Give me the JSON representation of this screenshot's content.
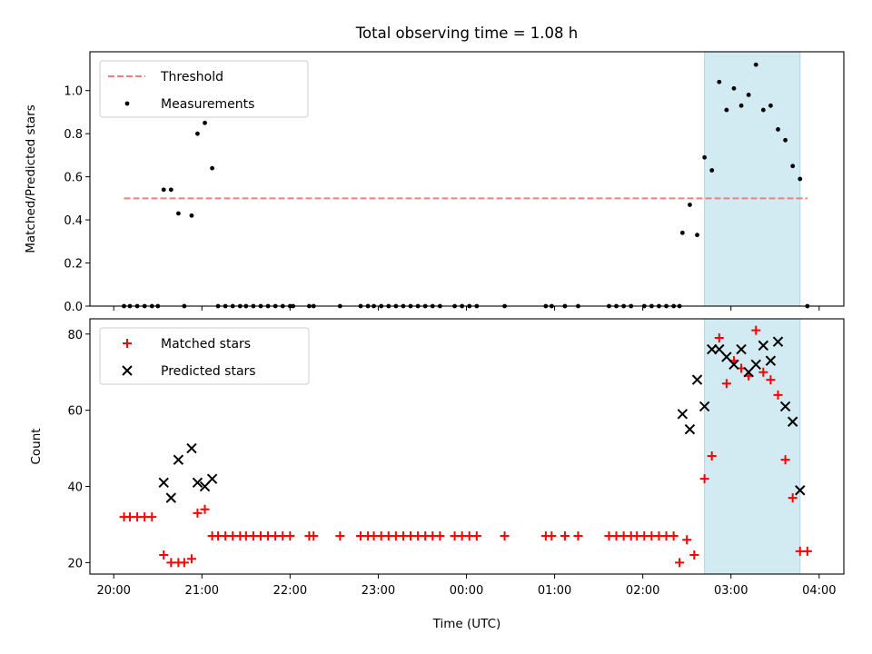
{
  "title": "Total observing time = 1.08 h",
  "chart_data": [
    {
      "type": "scatter",
      "ylabel": "Matched/Predicted stars",
      "ylim": [
        0,
        1.18
      ],
      "xlim_hours": [
        19.73,
        28.28
      ],
      "yticks": [
        0.0,
        0.2,
        0.4,
        0.6,
        0.8,
        1.0
      ],
      "ytick_labels": [
        "0.0",
        "0.2",
        "0.4",
        "0.6",
        "0.8",
        "1.0"
      ],
      "highlight_span": {
        "from": "02:42",
        "to": "03:47",
        "color": "#add8e6"
      },
      "threshold": {
        "name": "Threshold",
        "y": 0.5,
        "x_from": "20:07",
        "x_to": "03:52",
        "color": "#f08080"
      },
      "legend": [
        "Threshold",
        "Measurements"
      ],
      "legend_position": "upper left",
      "series": [
        {
          "name": "Measurements",
          "color": "#000000",
          "points": [
            [
              "20:07",
              0
            ],
            [
              "20:11",
              0
            ],
            [
              "20:16",
              0
            ],
            [
              "20:21",
              0
            ],
            [
              "20:26",
              0
            ],
            [
              "20:30",
              0
            ],
            [
              "20:34",
              0.54
            ],
            [
              "20:39",
              0.54
            ],
            [
              "20:44",
              0.43
            ],
            [
              "20:48",
              0
            ],
            [
              "20:53",
              0.42
            ],
            [
              "20:57",
              0.8
            ],
            [
              "21:02",
              0.85
            ],
            [
              "21:07",
              0.64
            ],
            [
              "21:11",
              0
            ],
            [
              "21:16",
              0
            ],
            [
              "21:21",
              0
            ],
            [
              "21:26",
              0
            ],
            [
              "21:30",
              0
            ],
            [
              "21:35",
              0
            ],
            [
              "21:40",
              0
            ],
            [
              "21:45",
              0
            ],
            [
              "21:50",
              0
            ],
            [
              "21:55",
              0
            ],
            [
              "22:00",
              0
            ],
            [
              "22:02",
              0
            ],
            [
              "22:13",
              0
            ],
            [
              "22:16",
              0
            ],
            [
              "22:34",
              0
            ],
            [
              "22:48",
              0
            ],
            [
              "22:53",
              0
            ],
            [
              "22:57",
              0
            ],
            [
              "23:02",
              0
            ],
            [
              "23:07",
              0
            ],
            [
              "23:12",
              0
            ],
            [
              "23:17",
              0
            ],
            [
              "23:22",
              0
            ],
            [
              "23:27",
              0
            ],
            [
              "23:32",
              0
            ],
            [
              "23:37",
              0
            ],
            [
              "23:42",
              0
            ],
            [
              "23:52",
              0
            ],
            [
              "23:57",
              0
            ],
            [
              "00:02",
              0
            ],
            [
              "00:07",
              0
            ],
            [
              "00:26",
              0
            ],
            [
              "00:54",
              0
            ],
            [
              "00:58",
              0
            ],
            [
              "01:07",
              0
            ],
            [
              "01:16",
              0
            ],
            [
              "01:37",
              0
            ],
            [
              "01:42",
              0
            ],
            [
              "01:47",
              0
            ],
            [
              "01:52",
              0
            ],
            [
              "02:01",
              0
            ],
            [
              "02:06",
              0
            ],
            [
              "02:11",
              0
            ],
            [
              "02:16",
              0
            ],
            [
              "02:21",
              0
            ],
            [
              "02:25",
              0
            ],
            [
              "02:27",
              0.34
            ],
            [
              "02:32",
              0.47
            ],
            [
              "02:37",
              0.33
            ],
            [
              "02:42",
              0.69
            ],
            [
              "02:47",
              0.63
            ],
            [
              "02:52",
              1.04
            ],
            [
              "02:57",
              0.91
            ],
            [
              "03:02",
              1.01
            ],
            [
              "03:07",
              0.93
            ],
            [
              "03:12",
              0.98
            ],
            [
              "03:17",
              1.12
            ],
            [
              "03:22",
              0.91
            ],
            [
              "03:27",
              0.93
            ],
            [
              "03:32",
              0.82
            ],
            [
              "03:37",
              0.77
            ],
            [
              "03:42",
              0.65
            ],
            [
              "03:47",
              0.59
            ],
            [
              "03:52",
              0
            ]
          ]
        }
      ]
    },
    {
      "type": "scatter",
      "xlabel": "Time (UTC)",
      "ylabel": "Count",
      "ylim": [
        17,
        84
      ],
      "xlim_hours": [
        19.73,
        28.28
      ],
      "yticks": [
        20,
        40,
        60,
        80
      ],
      "ytick_labels": [
        "20",
        "40",
        "60",
        "80"
      ],
      "xticks": [
        "20:00",
        "21:00",
        "22:00",
        "23:00",
        "00:00",
        "01:00",
        "02:00",
        "03:00",
        "04:00"
      ],
      "highlight_span": {
        "from": "02:42",
        "to": "03:47",
        "color": "#add8e6"
      },
      "legend": [
        "Matched stars",
        "Predicted stars"
      ],
      "legend_position": "upper left",
      "series": [
        {
          "name": "Matched stars",
          "marker": "plus",
          "color": "#ff0000",
          "points": [
            [
              "20:07",
              32
            ],
            [
              "20:11",
              32
            ],
            [
              "20:16",
              32
            ],
            [
              "20:21",
              32
            ],
            [
              "20:26",
              32
            ],
            [
              "20:34",
              22
            ],
            [
              "20:39",
              20
            ],
            [
              "20:44",
              20
            ],
            [
              "20:48",
              20
            ],
            [
              "20:53",
              21
            ],
            [
              "20:57",
              33
            ],
            [
              "21:02",
              34
            ],
            [
              "21:07",
              27
            ],
            [
              "21:11",
              27
            ],
            [
              "21:16",
              27
            ],
            [
              "21:21",
              27
            ],
            [
              "21:26",
              27
            ],
            [
              "21:30",
              27
            ],
            [
              "21:35",
              27
            ],
            [
              "21:40",
              27
            ],
            [
              "21:45",
              27
            ],
            [
              "21:50",
              27
            ],
            [
              "21:55",
              27
            ],
            [
              "22:00",
              27
            ],
            [
              "22:13",
              27
            ],
            [
              "22:16",
              27
            ],
            [
              "22:34",
              27
            ],
            [
              "22:48",
              27
            ],
            [
              "22:53",
              27
            ],
            [
              "22:57",
              27
            ],
            [
              "23:02",
              27
            ],
            [
              "23:07",
              27
            ],
            [
              "23:12",
              27
            ],
            [
              "23:17",
              27
            ],
            [
              "23:22",
              27
            ],
            [
              "23:27",
              27
            ],
            [
              "23:32",
              27
            ],
            [
              "23:37",
              27
            ],
            [
              "23:42",
              27
            ],
            [
              "23:52",
              27
            ],
            [
              "23:57",
              27
            ],
            [
              "00:02",
              27
            ],
            [
              "00:07",
              27
            ],
            [
              "00:26",
              27
            ],
            [
              "00:54",
              27
            ],
            [
              "00:58",
              27
            ],
            [
              "01:07",
              27
            ],
            [
              "01:16",
              27
            ],
            [
              "01:37",
              27
            ],
            [
              "01:42",
              27
            ],
            [
              "01:47",
              27
            ],
            [
              "01:52",
              27
            ],
            [
              "01:56",
              27
            ],
            [
              "02:01",
              27
            ],
            [
              "02:06",
              27
            ],
            [
              "02:11",
              27
            ],
            [
              "02:16",
              27
            ],
            [
              "02:21",
              27
            ],
            [
              "02:25",
              20
            ],
            [
              "02:30",
              26
            ],
            [
              "02:35",
              22
            ],
            [
              "02:42",
              42
            ],
            [
              "02:47",
              48
            ],
            [
              "02:52",
              79
            ],
            [
              "02:57",
              67
            ],
            [
              "03:02",
              73
            ],
            [
              "03:07",
              71
            ],
            [
              "03:12",
              69
            ],
            [
              "03:17",
              81
            ],
            [
              "03:22",
              70
            ],
            [
              "03:27",
              68
            ],
            [
              "03:32",
              64
            ],
            [
              "03:37",
              47
            ],
            [
              "03:42",
              37
            ],
            [
              "03:47",
              23
            ],
            [
              "03:52",
              23
            ]
          ]
        },
        {
          "name": "Predicted stars",
          "marker": "x",
          "color": "#000000",
          "points": [
            [
              "20:34",
              41
            ],
            [
              "20:39",
              37
            ],
            [
              "20:44",
              47
            ],
            [
              "20:53",
              50
            ],
            [
              "20:57",
              41
            ],
            [
              "21:02",
              40
            ],
            [
              "21:07",
              42
            ],
            [
              "02:27",
              59
            ],
            [
              "02:32",
              55
            ],
            [
              "02:37",
              68
            ],
            [
              "02:42",
              61
            ],
            [
              "02:47",
              76
            ],
            [
              "02:52",
              76
            ],
            [
              "02:57",
              74
            ],
            [
              "03:02",
              72
            ],
            [
              "03:07",
              76
            ],
            [
              "03:12",
              70
            ],
            [
              "03:17",
              72
            ],
            [
              "03:22",
              77
            ],
            [
              "03:27",
              73
            ],
            [
              "03:32",
              78
            ],
            [
              "03:37",
              61
            ],
            [
              "03:42",
              57
            ],
            [
              "03:47",
              39
            ]
          ]
        }
      ]
    }
  ]
}
